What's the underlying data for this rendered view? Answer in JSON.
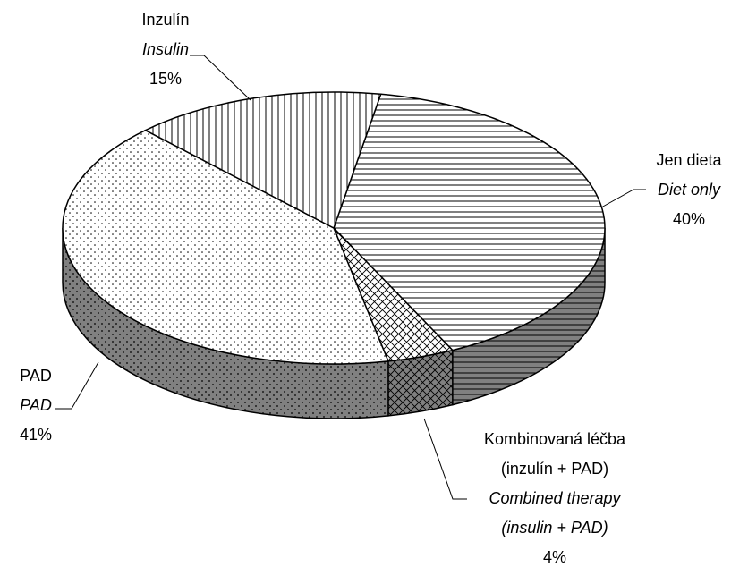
{
  "chart_data": {
    "type": "pie3d",
    "categories": [
      "Jen dieta",
      "Kombinovaná léčba (inzulín + PAD)",
      "PAD",
      "Inzulín"
    ],
    "categories_en": [
      "Diet only",
      "Combined therapy (insulin + PAD)",
      "PAD",
      "Insulin"
    ],
    "values": [
      40,
      4,
      41,
      15
    ],
    "value_labels": [
      "40%",
      "4%",
      "41%",
      "15%"
    ],
    "patterns": [
      "horizontal",
      "crosshatch",
      "dots",
      "vertical"
    ]
  }
}
